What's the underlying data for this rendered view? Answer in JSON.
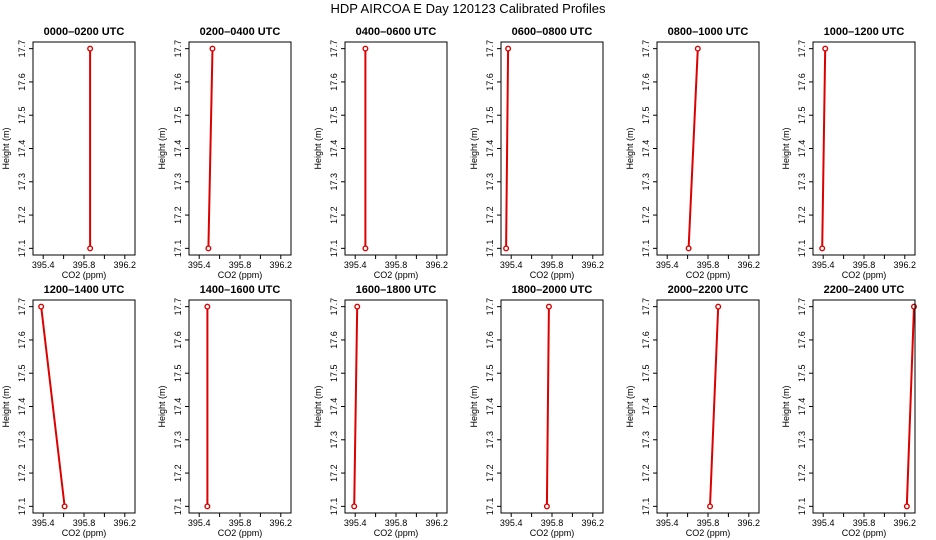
{
  "figure": {
    "title": "HDP AIRCOA E  Day 120123  Calibrated Profiles",
    "line_color": "#dd0000",
    "axis_color": "#000000"
  },
  "chart_data": [
    {
      "type": "line",
      "title": "0000–0200 UTC",
      "xlabel": "CO2 (ppm)",
      "ylabel": "Height (m)",
      "xlim": [
        395.3,
        396.3
      ],
      "ylim": [
        17.08,
        17.72
      ],
      "xticks": [
        395.4,
        395.6,
        395.8,
        396.0,
        396.2
      ],
      "xtick_labels": [
        "395.4",
        "",
        "395.8",
        "",
        "396.2"
      ],
      "yticks": [
        17.1,
        17.2,
        17.3,
        17.4,
        17.5,
        17.6,
        17.7
      ],
      "ytick_labels": [
        "17.1",
        "17.2",
        "17.3",
        "17.4",
        "17.5",
        "17.6",
        "17.7"
      ],
      "series": [
        {
          "x": [
            395.86,
            395.86
          ],
          "y": [
            17.1,
            17.7
          ]
        }
      ]
    },
    {
      "type": "line",
      "title": "0200–0400 UTC",
      "xlabel": "CO2 (ppm)",
      "ylabel": "Height (m)",
      "xlim": [
        395.3,
        396.3
      ],
      "ylim": [
        17.08,
        17.72
      ],
      "xticks": [
        395.4,
        395.6,
        395.8,
        396.0,
        396.2
      ],
      "xtick_labels": [
        "395.4",
        "",
        "395.8",
        "",
        "396.2"
      ],
      "yticks": [
        17.1,
        17.2,
        17.3,
        17.4,
        17.5,
        17.6,
        17.7
      ],
      "ytick_labels": [
        "17.1",
        "17.2",
        "17.3",
        "17.4",
        "17.5",
        "17.6",
        "17.7"
      ],
      "series": [
        {
          "x": [
            395.49,
            395.53
          ],
          "y": [
            17.1,
            17.7
          ]
        }
      ]
    },
    {
      "type": "line",
      "title": "0400–0600 UTC",
      "xlabel": "CO2 (ppm)",
      "ylabel": "Height (m)",
      "xlim": [
        395.3,
        396.3
      ],
      "ylim": [
        17.08,
        17.72
      ],
      "xticks": [
        395.4,
        395.6,
        395.8,
        396.0,
        396.2
      ],
      "xtick_labels": [
        "395.4",
        "",
        "395.8",
        "",
        "396.2"
      ],
      "yticks": [
        17.1,
        17.2,
        17.3,
        17.4,
        17.5,
        17.6,
        17.7
      ],
      "ytick_labels": [
        "17.1",
        "17.2",
        "17.3",
        "17.4",
        "17.5",
        "17.6",
        "17.7"
      ],
      "series": [
        {
          "x": [
            395.5,
            395.5
          ],
          "y": [
            17.1,
            17.7
          ]
        }
      ]
    },
    {
      "type": "line",
      "title": "0600–0800 UTC",
      "xlabel": "CO2 (ppm)",
      "ylabel": "Height (m)",
      "xlim": [
        395.3,
        396.3
      ],
      "ylim": [
        17.08,
        17.72
      ],
      "xticks": [
        395.4,
        395.6,
        395.8,
        396.0,
        396.2
      ],
      "xtick_labels": [
        "395.4",
        "",
        "395.8",
        "",
        "396.2"
      ],
      "yticks": [
        17.1,
        17.2,
        17.3,
        17.4,
        17.5,
        17.6,
        17.7
      ],
      "ytick_labels": [
        "17.1",
        "17.2",
        "17.3",
        "17.4",
        "17.5",
        "17.6",
        "17.7"
      ],
      "series": [
        {
          "x": [
            395.35,
            395.37
          ],
          "y": [
            17.1,
            17.7
          ]
        }
      ]
    },
    {
      "type": "line",
      "title": "0800–1000 UTC",
      "xlabel": "CO2 (ppm)",
      "ylabel": "Height (m)",
      "xlim": [
        395.3,
        396.3
      ],
      "ylim": [
        17.08,
        17.72
      ],
      "xticks": [
        395.4,
        395.6,
        395.8,
        396.0,
        396.2
      ],
      "xtick_labels": [
        "395.4",
        "",
        "395.8",
        "",
        "396.2"
      ],
      "yticks": [
        17.1,
        17.2,
        17.3,
        17.4,
        17.5,
        17.6,
        17.7
      ],
      "ytick_labels": [
        "17.1",
        "17.2",
        "17.3",
        "17.4",
        "17.5",
        "17.6",
        "17.7"
      ],
      "series": [
        {
          "x": [
            395.61,
            395.7
          ],
          "y": [
            17.1,
            17.7
          ]
        }
      ]
    },
    {
      "type": "line",
      "title": "1000–1200 UTC",
      "xlabel": "CO2 (ppm)",
      "ylabel": "Height (m)",
      "xlim": [
        395.3,
        396.3
      ],
      "ylim": [
        17.08,
        17.72
      ],
      "xticks": [
        395.4,
        395.6,
        395.8,
        396.0,
        396.2
      ],
      "xtick_labels": [
        "395.4",
        "",
        "395.8",
        "",
        "396.2"
      ],
      "yticks": [
        17.1,
        17.2,
        17.3,
        17.4,
        17.5,
        17.6,
        17.7
      ],
      "ytick_labels": [
        "17.1",
        "17.2",
        "17.3",
        "17.4",
        "17.5",
        "17.6",
        "17.7"
      ],
      "series": [
        {
          "x": [
            395.39,
            395.42
          ],
          "y": [
            17.1,
            17.7
          ]
        }
      ]
    },
    {
      "type": "line",
      "title": "1200–1400 UTC",
      "xlabel": "CO2 (ppm)",
      "ylabel": "Height (m)",
      "xlim": [
        395.3,
        396.3
      ],
      "ylim": [
        17.08,
        17.72
      ],
      "xticks": [
        395.4,
        395.6,
        395.8,
        396.0,
        396.2
      ],
      "xtick_labels": [
        "395.4",
        "",
        "395.8",
        "",
        "396.2"
      ],
      "yticks": [
        17.1,
        17.2,
        17.3,
        17.4,
        17.5,
        17.6,
        17.7
      ],
      "ytick_labels": [
        "17.1",
        "17.2",
        "17.3",
        "17.4",
        "17.5",
        "17.6",
        "17.7"
      ],
      "series": [
        {
          "x": [
            395.61,
            395.38
          ],
          "y": [
            17.1,
            17.7
          ]
        }
      ]
    },
    {
      "type": "line",
      "title": "1400–1600 UTC",
      "xlabel": "CO2 (ppm)",
      "ylabel": "Height (m)",
      "xlim": [
        395.3,
        396.3
      ],
      "ylim": [
        17.08,
        17.72
      ],
      "xticks": [
        395.4,
        395.6,
        395.8,
        396.0,
        396.2
      ],
      "xtick_labels": [
        "395.4",
        "",
        "395.8",
        "",
        "396.2"
      ],
      "yticks": [
        17.1,
        17.2,
        17.3,
        17.4,
        17.5,
        17.6,
        17.7
      ],
      "ytick_labels": [
        "17.1",
        "17.2",
        "17.3",
        "17.4",
        "17.5",
        "17.6",
        "17.7"
      ],
      "series": [
        {
          "x": [
            395.48,
            395.48
          ],
          "y": [
            17.1,
            17.7
          ]
        }
      ]
    },
    {
      "type": "line",
      "title": "1600–1800 UTC",
      "xlabel": "CO2 (ppm)",
      "ylabel": "Height (m)",
      "xlim": [
        395.3,
        396.3
      ],
      "ylim": [
        17.08,
        17.72
      ],
      "xticks": [
        395.4,
        395.6,
        395.8,
        396.0,
        396.2
      ],
      "xtick_labels": [
        "395.4",
        "",
        "395.8",
        "",
        "396.2"
      ],
      "yticks": [
        17.1,
        17.2,
        17.3,
        17.4,
        17.5,
        17.6,
        17.7
      ],
      "ytick_labels": [
        "17.1",
        "17.2",
        "17.3",
        "17.4",
        "17.5",
        "17.6",
        "17.7"
      ],
      "series": [
        {
          "x": [
            395.39,
            395.42
          ],
          "y": [
            17.1,
            17.7
          ]
        }
      ]
    },
    {
      "type": "line",
      "title": "1800–2000 UTC",
      "xlabel": "CO2 (ppm)",
      "ylabel": "Height (m)",
      "xlim": [
        395.3,
        396.3
      ],
      "ylim": [
        17.08,
        17.72
      ],
      "xticks": [
        395.4,
        395.6,
        395.8,
        396.0,
        396.2
      ],
      "xtick_labels": [
        "395.4",
        "",
        "395.8",
        "",
        "396.2"
      ],
      "yticks": [
        17.1,
        17.2,
        17.3,
        17.4,
        17.5,
        17.6,
        17.7
      ],
      "ytick_labels": [
        "17.1",
        "17.2",
        "17.3",
        "17.4",
        "17.5",
        "17.6",
        "17.7"
      ],
      "series": [
        {
          "x": [
            395.75,
            395.77
          ],
          "y": [
            17.1,
            17.7
          ]
        }
      ]
    },
    {
      "type": "line",
      "title": "2000–2200 UTC",
      "xlabel": "CO2 (ppm)",
      "ylabel": "Height (m)",
      "xlim": [
        395.3,
        396.3
      ],
      "ylim": [
        17.08,
        17.72
      ],
      "xticks": [
        395.4,
        395.6,
        395.8,
        396.0,
        396.2
      ],
      "xtick_labels": [
        "395.4",
        "",
        "395.8",
        "",
        "396.2"
      ],
      "yticks": [
        17.1,
        17.2,
        17.3,
        17.4,
        17.5,
        17.6,
        17.7
      ],
      "ytick_labels": [
        "17.1",
        "17.2",
        "17.3",
        "17.4",
        "17.5",
        "17.6",
        "17.7"
      ],
      "series": [
        {
          "x": [
            395.82,
            395.9
          ],
          "y": [
            17.1,
            17.7
          ]
        }
      ]
    },
    {
      "type": "line",
      "title": "2200–2400 UTC",
      "xlabel": "CO2 (ppm)",
      "ylabel": "Height (m)",
      "xlim": [
        395.3,
        396.3
      ],
      "ylim": [
        17.08,
        17.72
      ],
      "xticks": [
        395.4,
        395.6,
        395.8,
        396.0,
        396.2
      ],
      "xtick_labels": [
        "395.4",
        "",
        "395.8",
        "",
        "396.2"
      ],
      "yticks": [
        17.1,
        17.2,
        17.3,
        17.4,
        17.5,
        17.6,
        17.7
      ],
      "ytick_labels": [
        "17.1",
        "17.2",
        "17.3",
        "17.4",
        "17.5",
        "17.6",
        "17.7"
      ],
      "series": [
        {
          "x": [
            396.22,
            396.29
          ],
          "y": [
            17.1,
            17.7
          ]
        }
      ]
    }
  ]
}
